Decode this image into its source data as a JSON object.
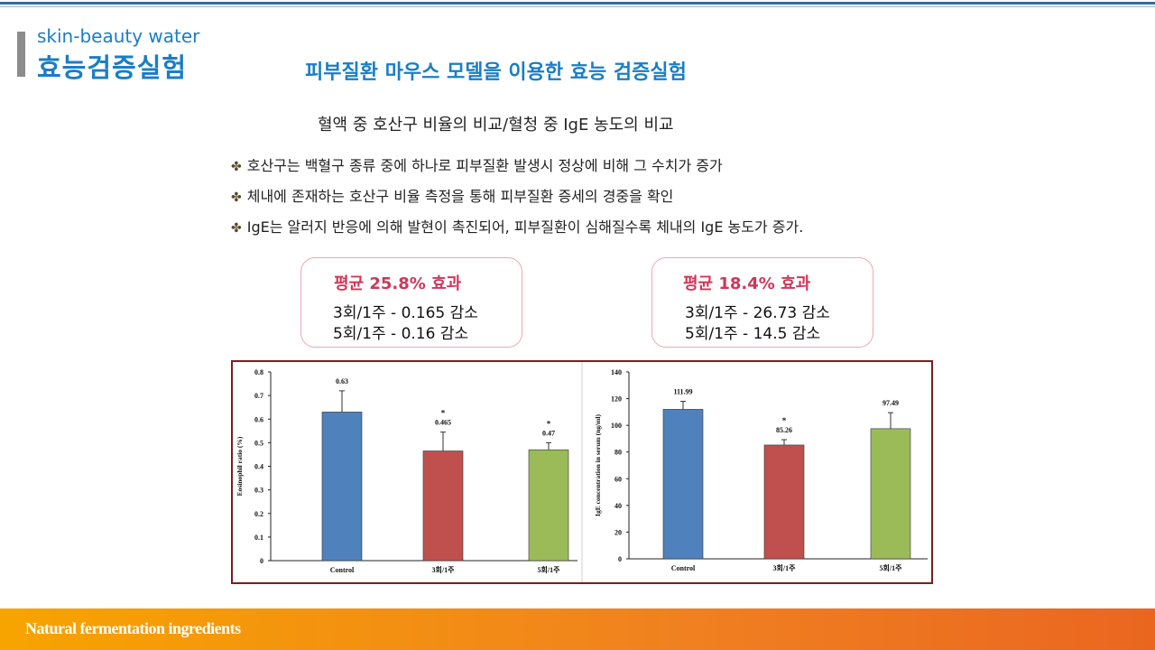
{
  "header": {
    "brand_sub": "skin-beauty water",
    "brand_main": "효능검증실험",
    "headline": "피부질환 마우스 모델을 이용한 효능 검증실험",
    "subtitle": "혈액 중 호산구 비율의 비교/혈청 중 IgE 농도의 비교"
  },
  "bullets": [
    "호산구는 백혈구 종류 중에 하나로 피부질환 발생시 정상에 비해 그 수치가 증가",
    "체내에 존재하는 호산구 비율 측정을 통해 피부질환 증세의 경중을 확인",
    "IgE는 알러지 반응에 의해 발현이 촉진되어, 피부질환이 심해질수록 체내의 IgE 농도가 증가."
  ],
  "bullet_mark": "✤",
  "stat_boxes": [
    {
      "title": "평균  25.8%  효과",
      "lines": [
        "3회/1주 - 0.165 감소",
        "5회/1주 - 0.16 감소"
      ]
    },
    {
      "title": "평균  18.4%  효과",
      "lines": [
        "3회/1주 - 26.73 감소",
        "5회/1주 - 14.5 감소"
      ]
    }
  ],
  "chart_data": [
    {
      "type": "bar",
      "categories": [
        "Control",
        "3회/1주",
        "5회/1주"
      ],
      "values": [
        0.63,
        0.465,
        0.47
      ],
      "value_labels": [
        "0.63",
        "0.465",
        "0.47"
      ],
      "error": [
        0.09,
        0.08,
        0.03
      ],
      "significance": [
        "",
        "*",
        "*"
      ],
      "colors": [
        "#4f81bd",
        "#c0504d",
        "#9bbb59"
      ],
      "title": "",
      "xlabel": "",
      "ylabel": "Eosinophil ratio (%)",
      "ylim": [
        0,
        0.8
      ],
      "yticks": [
        "0",
        "0.1",
        "0.2",
        "0.3",
        "0.4",
        "0.5",
        "0.6",
        "0.7",
        "0.8"
      ]
    },
    {
      "type": "bar",
      "categories": [
        "Control",
        "3회/1주",
        "5회/1주"
      ],
      "values": [
        111.99,
        85.26,
        97.49
      ],
      "value_labels": [
        "111.99",
        "85.26",
        "97.49"
      ],
      "error": [
        6,
        4,
        12
      ],
      "significance": [
        "",
        "*",
        ""
      ],
      "colors": [
        "#4f81bd",
        "#c0504d",
        "#9bbb59"
      ],
      "title": "",
      "xlabel": "",
      "ylabel": "IgE concentration in serum (ng/ml)",
      "ylim": [
        0,
        140
      ],
      "yticks": [
        "0",
        "20",
        "40",
        "60",
        "80",
        "100",
        "120",
        "140"
      ]
    }
  ],
  "footer": {
    "text": "Natural fermentation ingredients"
  }
}
